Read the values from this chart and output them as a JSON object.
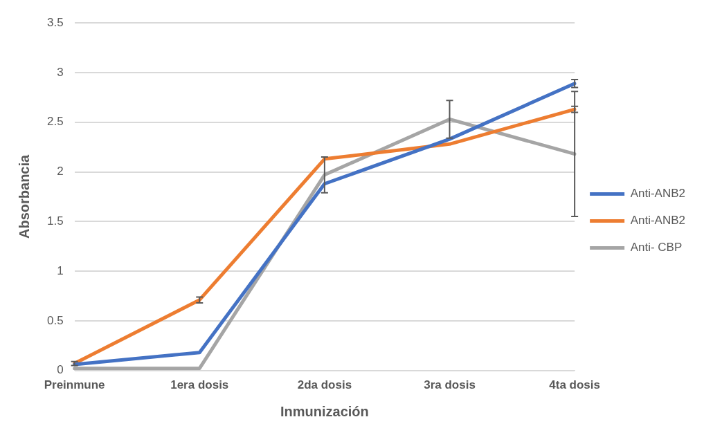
{
  "chart_data": {
    "type": "line",
    "xlabel": "Inmunización",
    "ylabel": "Absorbancia",
    "categories": [
      "Preinmune",
      "1era dosis",
      "2da dosis",
      "3ra dosis",
      "4ta dosis"
    ],
    "series": [
      {
        "name": "Anti-ANB2",
        "color": "#4472c4",
        "values": [
          0.06,
          0.18,
          1.88,
          2.33,
          2.89
        ],
        "errors": [
          null,
          null,
          null,
          null,
          0.04
        ]
      },
      {
        "name": "Anti-ANB2",
        "color": "#ed7d31",
        "values": [
          0.07,
          0.71,
          2.13,
          2.28,
          2.63
        ],
        "errors": [
          0.02,
          0.03,
          null,
          null,
          0.03
        ]
      },
      {
        "name": "Anti- CBP",
        "color": "#a5a5a5",
        "values": [
          0.02,
          0.02,
          1.97,
          2.53,
          2.18
        ],
        "errors": [
          null,
          null,
          0.18,
          0.19,
          0.63
        ]
      }
    ],
    "ylim": [
      0,
      3.5
    ],
    "yticks": [
      0,
      0.5,
      1,
      1.5,
      2,
      2.5,
      3,
      3.5
    ],
    "grid": "y",
    "legend": "right",
    "marker": "none",
    "line_style": "solid"
  }
}
